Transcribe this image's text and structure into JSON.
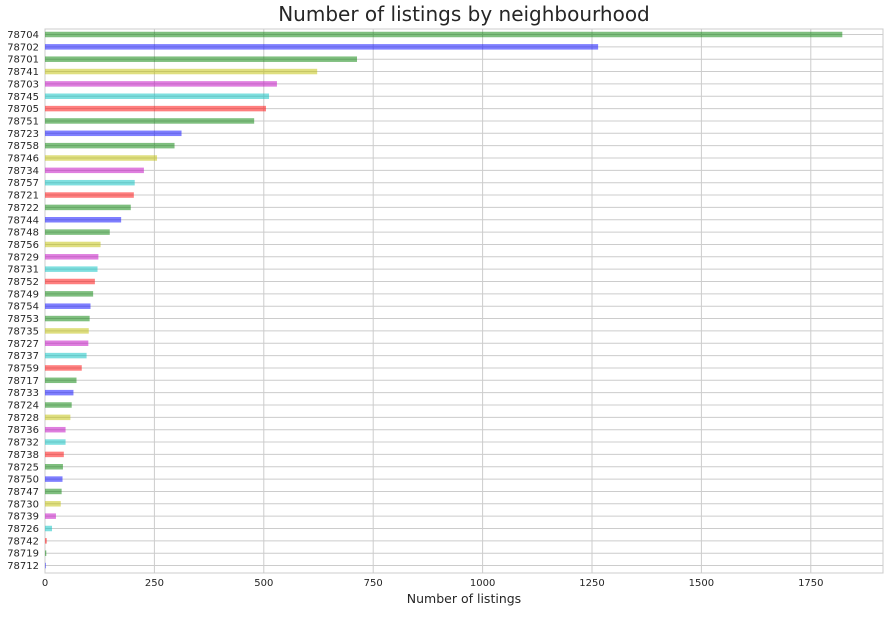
{
  "chart_data": {
    "type": "bar",
    "orientation": "horizontal",
    "title": "Number of listings by neighbourhood",
    "xlabel": "Number of listings",
    "ylabel": "",
    "xlim": [
      0,
      1915
    ],
    "xticks": [
      0,
      250,
      500,
      750,
      1000,
      1250,
      1500,
      1750
    ],
    "grid": true,
    "categories": [
      "78704",
      "78702",
      "78701",
      "78741",
      "78703",
      "78745",
      "78705",
      "78751",
      "78723",
      "78758",
      "78746",
      "78734",
      "78757",
      "78721",
      "78722",
      "78744",
      "78748",
      "78756",
      "78729",
      "78731",
      "78752",
      "78749",
      "78754",
      "78753",
      "78735",
      "78727",
      "78737",
      "78759",
      "78717",
      "78733",
      "78724",
      "78728",
      "78736",
      "78732",
      "78738",
      "78725",
      "78750",
      "78747",
      "78730",
      "78739",
      "78726",
      "78742",
      "78719",
      "78712"
    ],
    "values": [
      1822,
      1264,
      713,
      622,
      530,
      512,
      505,
      478,
      312,
      296,
      256,
      226,
      205,
      203,
      196,
      174,
      148,
      127,
      122,
      120,
      114,
      110,
      104,
      102,
      100,
      99,
      95,
      84,
      72,
      65,
      61,
      58,
      47,
      47,
      43,
      41,
      40,
      38,
      36,
      25,
      16,
      4,
      3,
      1
    ],
    "colors": [
      "#008000",
      "#0000ff",
      "#008000",
      "#bfbf00",
      "#bf00bf",
      "#00bfbf",
      "#ff0000"
    ],
    "bar_alpha": 0.5,
    "background": "#ffffff",
    "grid_color": "#cccccc"
  }
}
